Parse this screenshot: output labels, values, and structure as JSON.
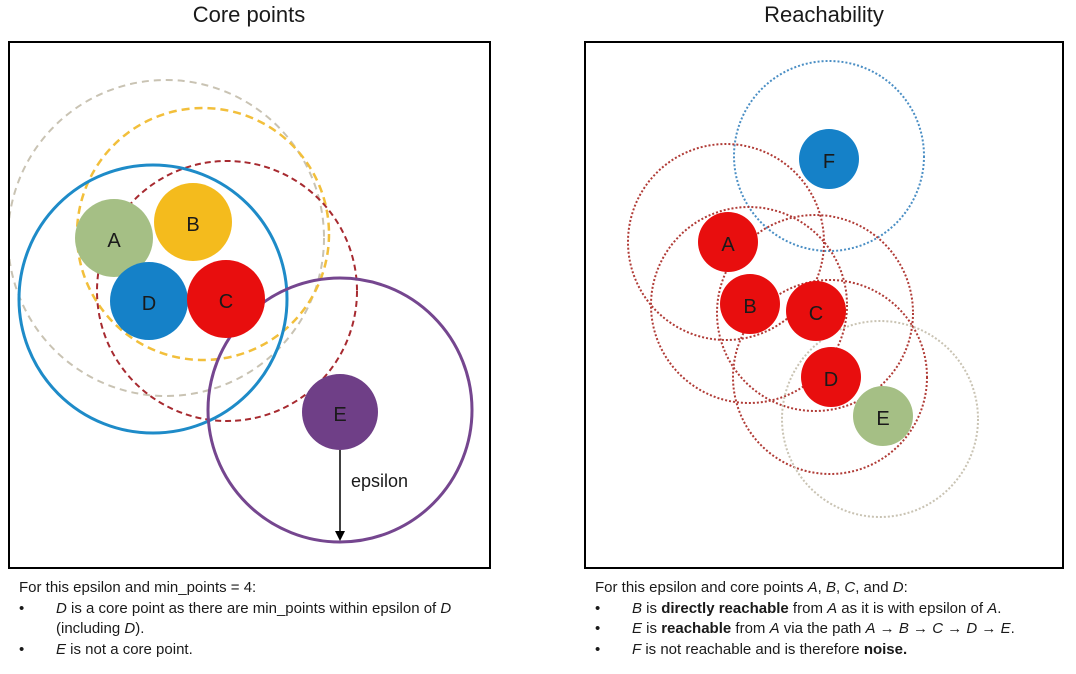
{
  "left_panel": {
    "title": "Core points",
    "points": [
      {
        "label": "A",
        "color": "#a5bf85"
      },
      {
        "label": "B",
        "color": "#f4bb1d"
      },
      {
        "label": "D",
        "color": "#1581c8"
      },
      {
        "label": "C",
        "color": "#e80e0e"
      },
      {
        "label": "E",
        "color": "#6f3f87"
      }
    ],
    "epsilon_label": "epsilon",
    "caption": {
      "intro": "For this epsilon and min_points = 4:",
      "bullets": [
        {
          "parts": [
            {
              "text": "D",
              "style": "italic"
            },
            {
              "text": " is a core point as there are min_points within epsilon of ",
              "style": "normal"
            },
            {
              "text": "D",
              "style": "italic"
            },
            {
              "text": " (including ",
              "style": "normal"
            },
            {
              "text": "D",
              "style": "italic"
            },
            {
              "text": ").",
              "style": "normal"
            }
          ]
        },
        {
          "parts": [
            {
              "text": "E",
              "style": "italic"
            },
            {
              "text": " is not a core point.",
              "style": "normal"
            }
          ]
        }
      ]
    }
  },
  "right_panel": {
    "title": "Reachability",
    "points": [
      {
        "label": "F",
        "color": "#1581c8"
      },
      {
        "label": "A",
        "color": "#e80e0e"
      },
      {
        "label": "B",
        "color": "#e80e0e"
      },
      {
        "label": "C",
        "color": "#e80e0e"
      },
      {
        "label": "D",
        "color": "#e80e0e"
      },
      {
        "label": "E",
        "color": "#a5bf85"
      }
    ],
    "caption": {
      "intro_parts": [
        {
          "text": "For this epsilon and core points ",
          "style": "normal"
        },
        {
          "text": "A",
          "style": "italic"
        },
        {
          "text": ", ",
          "style": "normal"
        },
        {
          "text": "B",
          "style": "italic"
        },
        {
          "text": ", ",
          "style": "normal"
        },
        {
          "text": "C",
          "style": "italic"
        },
        {
          "text": ", and ",
          "style": "normal"
        },
        {
          "text": "D",
          "style": "italic"
        },
        {
          "text": ":",
          "style": "normal"
        }
      ],
      "bullets": [
        {
          "parts": [
            {
              "text": "B",
              "style": "italic"
            },
            {
              "text": " is ",
              "style": "normal"
            },
            {
              "text": "directly reachable",
              "style": "bold"
            },
            {
              "text": " from ",
              "style": "normal"
            },
            {
              "text": "A",
              "style": "italic"
            },
            {
              "text": " as it is with epsilon of ",
              "style": "normal"
            },
            {
              "text": "A",
              "style": "italic"
            },
            {
              "text": ".",
              "style": "normal"
            }
          ]
        },
        {
          "parts": [
            {
              "text": "E",
              "style": "italic"
            },
            {
              "text": " is ",
              "style": "normal"
            },
            {
              "text": "reachable",
              "style": "bold"
            },
            {
              "text": " from ",
              "style": "normal"
            },
            {
              "text": "A",
              "style": "italic"
            },
            {
              "text": " via the path ",
              "style": "normal"
            },
            {
              "text": "A",
              "style": "italic"
            },
            {
              "text": " → ",
              "style": "bold"
            },
            {
              "text": "B",
              "style": "italic"
            },
            {
              "text": " → ",
              "style": "bold"
            },
            {
              "text": "C",
              "style": "italic"
            },
            {
              "text": " → ",
              "style": "bold"
            },
            {
              "text": "D",
              "style": "italic"
            },
            {
              "text": " → ",
              "style": "bold"
            },
            {
              "text": "E",
              "style": "italic"
            },
            {
              "text": ".",
              "style": "normal"
            }
          ]
        },
        {
          "parts": [
            {
              "text": "F",
              "style": "italic"
            },
            {
              "text": " is not reachable and is therefore ",
              "style": "normal"
            },
            {
              "text": "noise.",
              "style": "bold"
            }
          ]
        }
      ]
    }
  }
}
